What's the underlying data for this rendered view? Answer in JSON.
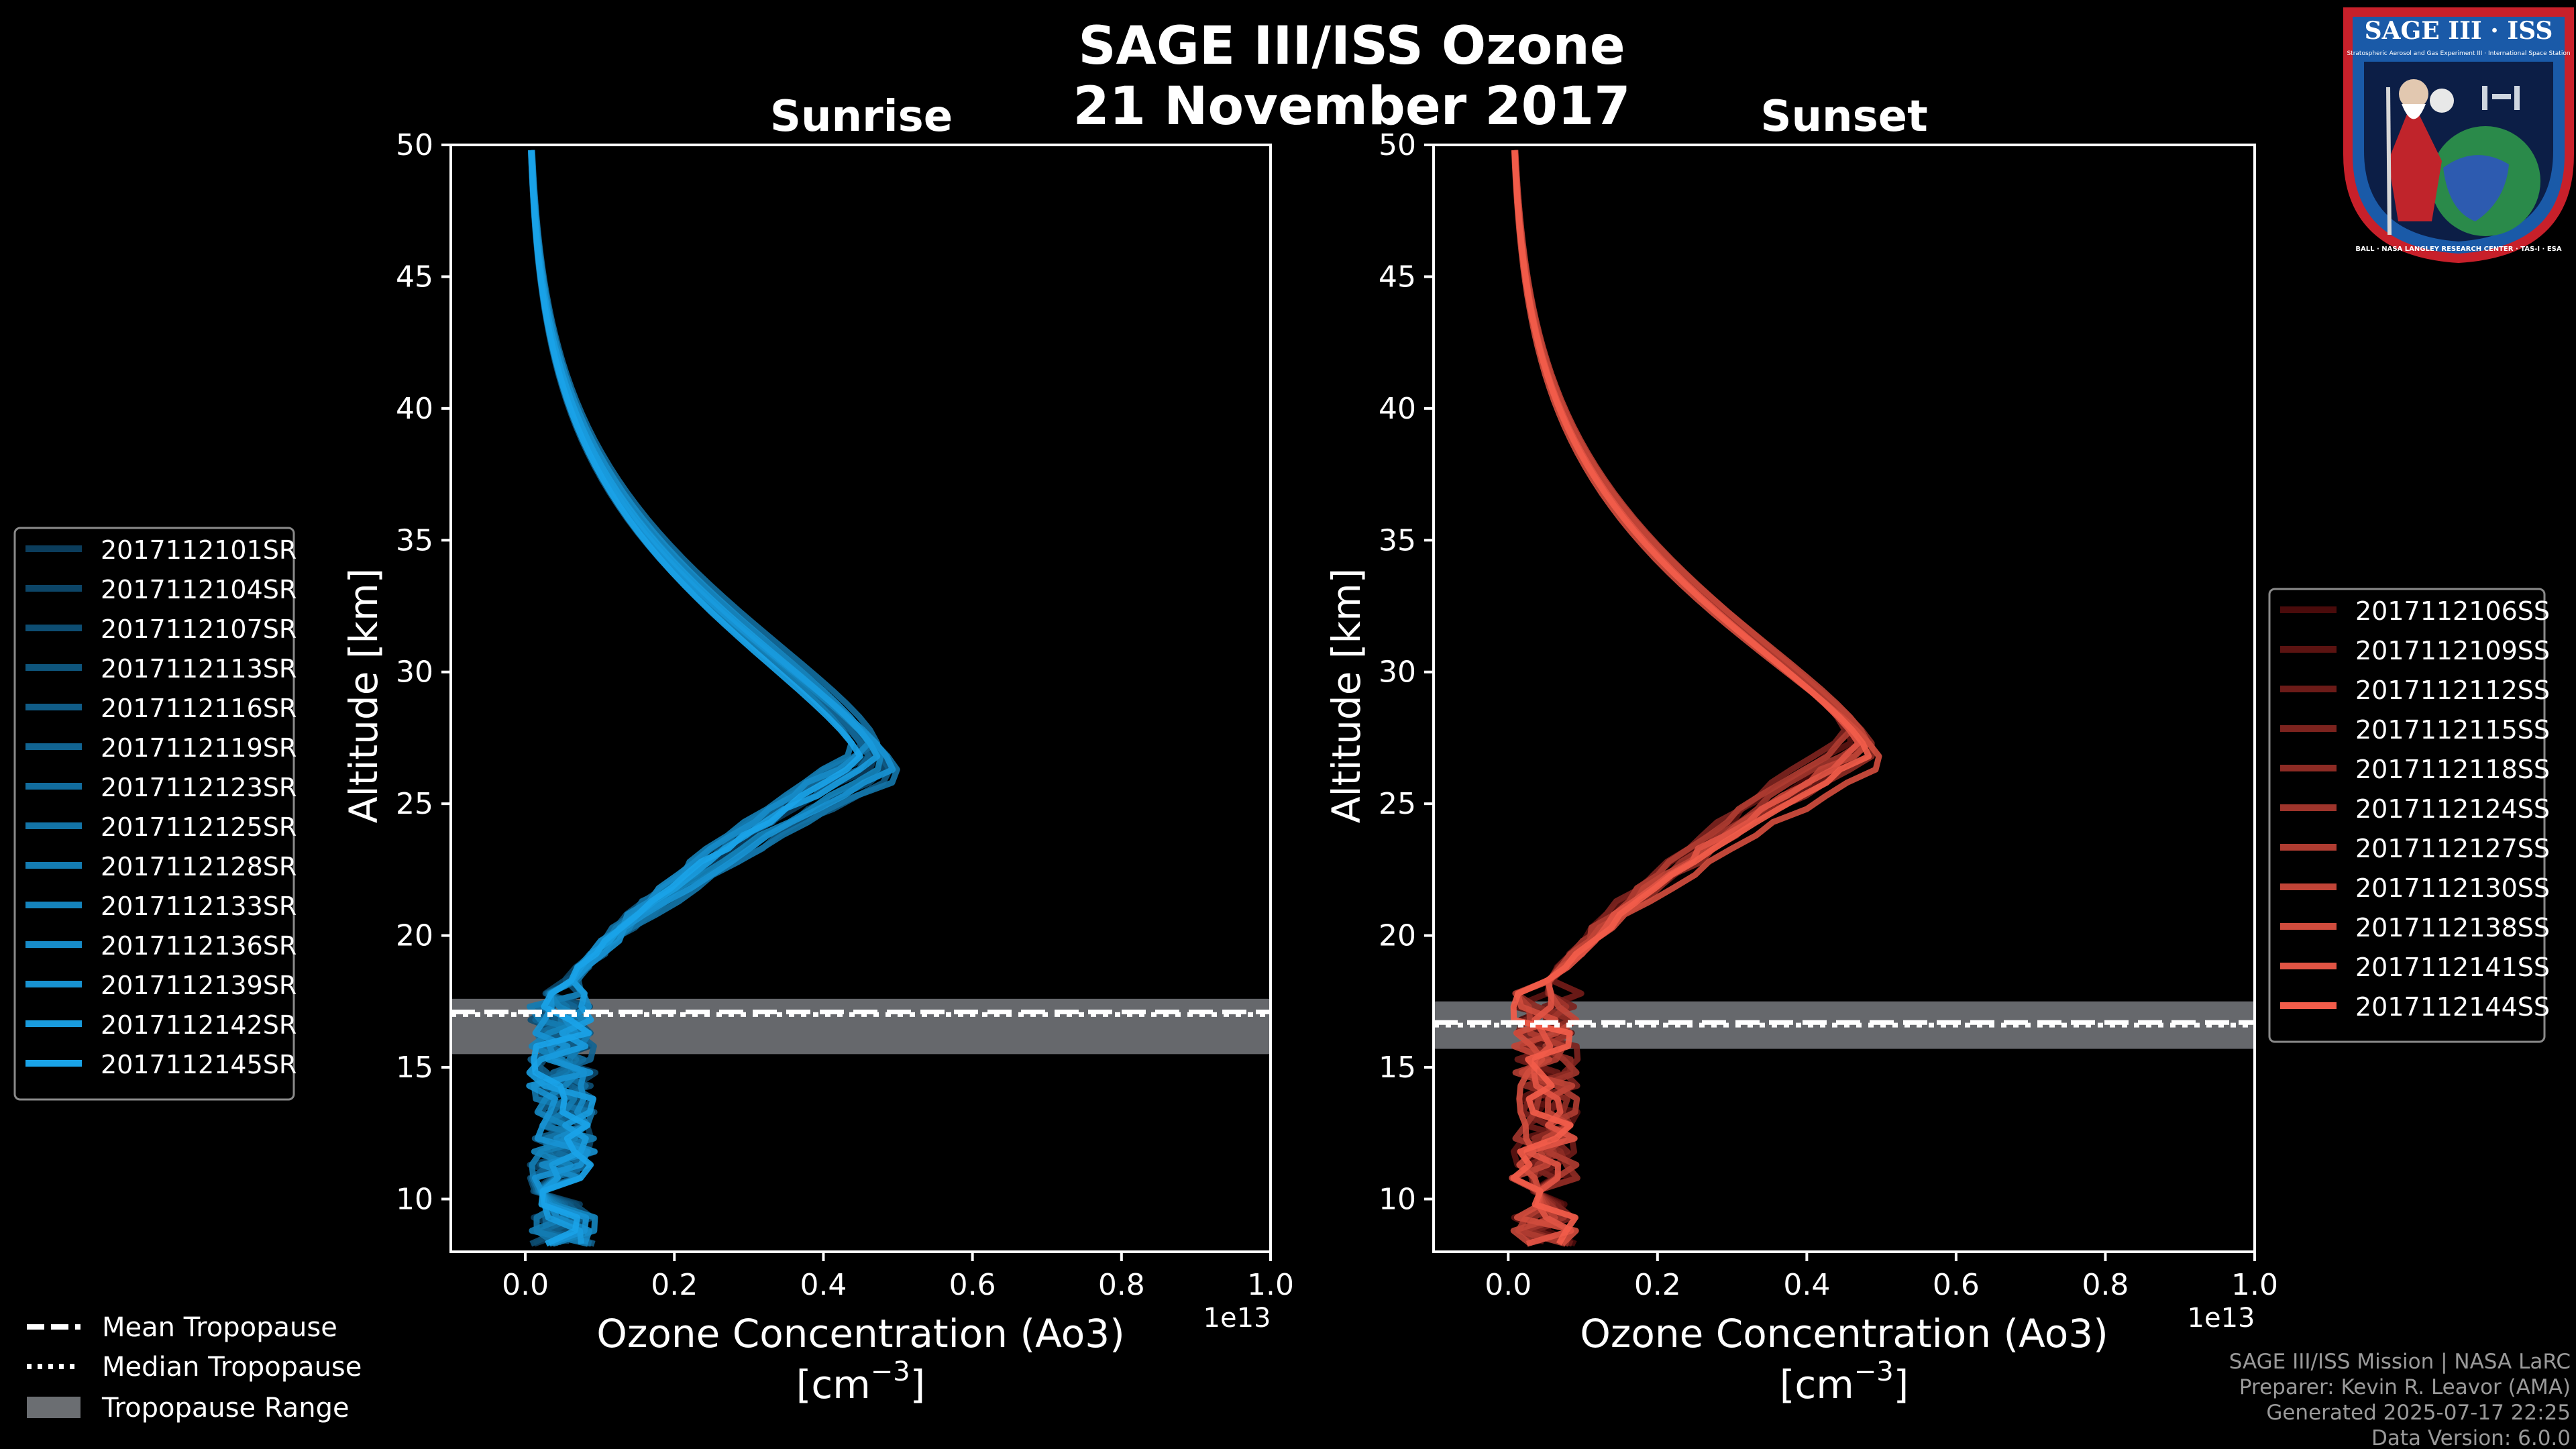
{
  "figure": {
    "title_line1": "SAGE III/ISS Ozone",
    "title_line2": "21 November 2017",
    "background": "#000000",
    "footer": [
      "SAGE III/ISS Mission | NASA LaRC",
      "Preparer: Kevin R. Leavor (AMA)",
      "Generated 2025-07-17 22:25",
      "Data Version: 6.0.0"
    ],
    "logo": {
      "title": "SAGE III · ISS",
      "ring_text": "BALL · NASA LANGLEY RESEARCH CENTER · TAS-I · ESA",
      "small_text": "Stratospheric Aerosol and Gas Experiment III · International Space Station"
    }
  },
  "bottom_legend": {
    "mean": "Mean Tropopause",
    "median": "Median Tropopause",
    "range": "Tropopause Range",
    "range_color": "#6b6e72"
  },
  "chart_data": [
    {
      "type": "line",
      "title": "Sunrise",
      "xlabel": "Ozone Concentration (Ao3)",
      "xunit_prefix": "[cm",
      "xunit_exp": "−3",
      "xunit_suffix": "]",
      "ylabel": "Altitude [km]",
      "xlim": [
        -0.1,
        1.0
      ],
      "ylim": [
        8,
        50
      ],
      "x_ticks": [
        0.0,
        0.2,
        0.4,
        0.6,
        0.8,
        1.0
      ],
      "x_tick_labels": [
        "0.0",
        "0.2",
        "0.4",
        "0.6",
        "0.8",
        "1.0"
      ],
      "y_ticks": [
        10,
        15,
        20,
        25,
        30,
        35,
        40,
        45,
        50
      ],
      "y_tick_labels": [
        "10",
        "15",
        "20",
        "25",
        "30",
        "35",
        "40",
        "45",
        "50"
      ],
      "x_scale_note": "1e13",
      "color_dark": "#0b3d5c",
      "color_light": "#1aa3e8",
      "tropopause": {
        "mean": 17.1,
        "median": 17.0,
        "range": [
          15.5,
          17.6
        ]
      },
      "series": [
        {
          "name": "2017112101SR",
          "peak": 0.47,
          "peak_alt": 26.5
        },
        {
          "name": "2017112104SR",
          "peak": 0.46,
          "peak_alt": 26.8
        },
        {
          "name": "2017112107SR",
          "peak": 0.48,
          "peak_alt": 26.2
        },
        {
          "name": "2017112113SR",
          "peak": 0.45,
          "peak_alt": 27.0
        },
        {
          "name": "2017112116SR",
          "peak": 0.49,
          "peak_alt": 26.0
        },
        {
          "name": "2017112119SR",
          "peak": 0.46,
          "peak_alt": 26.6
        },
        {
          "name": "2017112123SR",
          "peak": 0.47,
          "peak_alt": 27.2
        },
        {
          "name": "2017112125SR",
          "peak": 0.5,
          "peak_alt": 26.0
        },
        {
          "name": "2017112128SR",
          "peak": 0.44,
          "peak_alt": 26.9
        },
        {
          "name": "2017112133SR",
          "peak": 0.48,
          "peak_alt": 26.4
        },
        {
          "name": "2017112136SR",
          "peak": 0.46,
          "peak_alt": 27.1
        },
        {
          "name": "2017112139SR",
          "peak": 0.49,
          "peak_alt": 26.3
        },
        {
          "name": "2017112142SR",
          "peak": 0.47,
          "peak_alt": 26.7
        },
        {
          "name": "2017112145SR",
          "peak": 0.45,
          "peak_alt": 26.5
        }
      ]
    },
    {
      "type": "line",
      "title": "Sunset",
      "xlabel": "Ozone Concentration (Ao3)",
      "xunit_prefix": "[cm",
      "xunit_exp": "−3",
      "xunit_suffix": "]",
      "ylabel": "Altitude [km]",
      "xlim": [
        -0.1,
        1.0
      ],
      "ylim": [
        8,
        50
      ],
      "x_ticks": [
        0.0,
        0.2,
        0.4,
        0.6,
        0.8,
        1.0
      ],
      "x_tick_labels": [
        "0.0",
        "0.2",
        "0.4",
        "0.6",
        "0.8",
        "1.0"
      ],
      "y_ticks": [
        10,
        15,
        20,
        25,
        30,
        35,
        40,
        45,
        50
      ],
      "y_tick_labels": [
        "10",
        "15",
        "20",
        "25",
        "30",
        "35",
        "40",
        "45",
        "50"
      ],
      "x_scale_note": "1e13",
      "color_dark": "#4a0b0b",
      "color_light": "#f25c4a",
      "tropopause": {
        "mean": 16.7,
        "median": 16.6,
        "range": [
          15.7,
          17.5
        ]
      },
      "series": [
        {
          "name": "2017112106SS",
          "peak": 0.47,
          "peak_alt": 27.0
        },
        {
          "name": "2017112109SS",
          "peak": 0.46,
          "peak_alt": 27.4
        },
        {
          "name": "2017112112SS",
          "peak": 0.48,
          "peak_alt": 27.1
        },
        {
          "name": "2017112115SS",
          "peak": 0.45,
          "peak_alt": 27.6
        },
        {
          "name": "2017112118SS",
          "peak": 0.49,
          "peak_alt": 26.9
        },
        {
          "name": "2017112124SS",
          "peak": 0.47,
          "peak_alt": 27.3
        },
        {
          "name": "2017112127SS",
          "peak": 0.46,
          "peak_alt": 27.5
        },
        {
          "name": "2017112130SS",
          "peak": 0.48,
          "peak_alt": 27.2
        },
        {
          "name": "2017112138SS",
          "peak": 0.5,
          "peak_alt": 26.4
        },
        {
          "name": "2017112141SS",
          "peak": 0.47,
          "peak_alt": 27.0
        },
        {
          "name": "2017112144SS",
          "peak": 0.48,
          "peak_alt": 26.8
        }
      ]
    }
  ]
}
